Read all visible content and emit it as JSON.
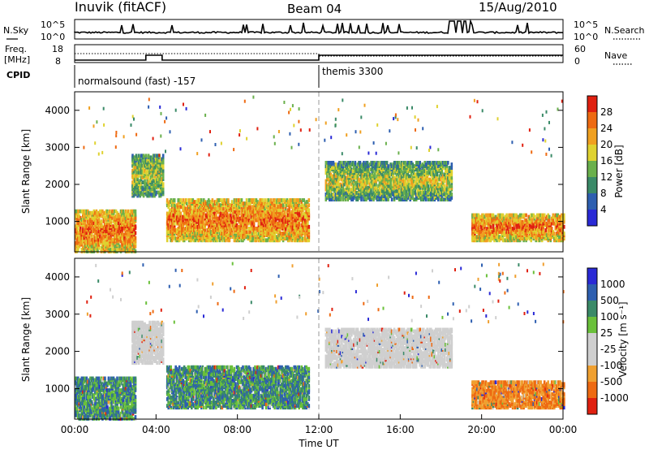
{
  "header": {
    "station": "Inuvik (fitACF)",
    "beam": "Beam 04",
    "date": "15/Aug/2010"
  },
  "summary": {
    "nsky_label": "N.Sky",
    "nsearch_label": "N.Search",
    "nsky_ticks": [
      "10^5",
      "10^0"
    ],
    "nsearch_ticks": [
      "10^5",
      "10^0"
    ],
    "freq_label_1": "Freq.",
    "freq_label_2": "[MHz]",
    "freq_ticks": [
      "18",
      "8"
    ],
    "nave_label": "Nave",
    "nave_ticks": [
      "60",
      "0"
    ],
    "cpid_label": "CPID",
    "cpid_segments": [
      {
        "text": "normalsound (fast) -157",
        "start_hour": 0
      },
      {
        "text": "themis 3300",
        "start_hour": 12
      }
    ]
  },
  "colors": {
    "power": [
      "#2a2ad6",
      "#2e5fb0",
      "#3a8a68",
      "#6ab04c",
      "#dfd230",
      "#f0a020",
      "#ee6a12",
      "#e02010"
    ],
    "velocity": [
      "#e02010",
      "#ee6a12",
      "#f0a030",
      "#cfcfcf",
      "#cfcfcf",
      "#6ac03a",
      "#3a8a68",
      "#2e5fb0",
      "#2a2ad6"
    ]
  },
  "chart_data": [
    {
      "type": "heatmap",
      "name": "power",
      "title": "",
      "xlabel": "",
      "ylabel": "Slant Range [km]",
      "xlim": [
        0,
        24
      ],
      "ylim": [
        180,
        4500
      ],
      "yticks": [
        "1000",
        "2000",
        "3000",
        "4000"
      ],
      "colorbar_label": "Power [dB]",
      "colorbar_ticks": [
        "4",
        "8",
        "12",
        "16",
        "20",
        "24",
        "28"
      ],
      "scatter_bands_km": [
        {
          "start_hour": 0.0,
          "end_hour": 3.0,
          "low": 200,
          "high": 1300,
          "dominant": "strong"
        },
        {
          "start_hour": 2.8,
          "end_hour": 4.3,
          "low": 1700,
          "high": 2800,
          "dominant": "moderate"
        },
        {
          "start_hour": 4.5,
          "end_hour": 11.5,
          "low": 500,
          "high": 1600,
          "dominant": "strong"
        },
        {
          "start_hour": 12.3,
          "end_hour": 18.5,
          "low": 1600,
          "high": 2600,
          "dominant": "moderate"
        },
        {
          "start_hour": 19.5,
          "end_hour": 24.0,
          "low": 500,
          "high": 1200,
          "dominant": "strong"
        }
      ]
    },
    {
      "type": "heatmap",
      "name": "velocity",
      "title": "",
      "xlabel": "Time UT",
      "ylabel": "Slant Range [km]",
      "xlim": [
        0,
        24
      ],
      "ylim": [
        180,
        4500
      ],
      "xticks": [
        "00:00",
        "04:00",
        "08:00",
        "12:00",
        "16:00",
        "20:00",
        "00:00"
      ],
      "yticks": [
        "1000",
        "2000",
        "3000",
        "4000"
      ],
      "colorbar_label": "Velocity [m s⁻¹]",
      "colorbar_ticks": [
        "1000",
        "500",
        "100",
        "25",
        "-25",
        "-100",
        "-500",
        "-1000"
      ]
    }
  ]
}
